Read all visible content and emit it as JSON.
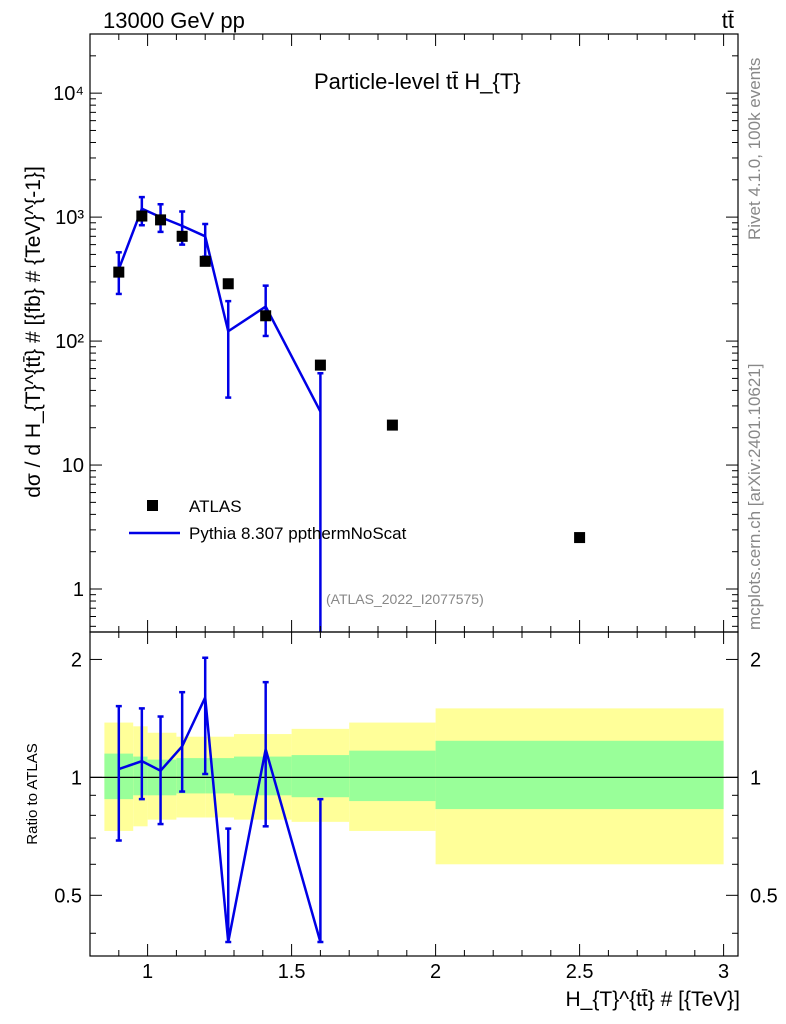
{
  "header": {
    "energy": "13000 GeV pp",
    "process": "tt̄"
  },
  "side_text": {
    "rivet": "Rivet 4.1.0,  100k events",
    "site": "mcplots.cern.ch [arXiv:2401.10621]"
  },
  "colors": {
    "data": "#000000",
    "mc": "#0000e6",
    "band_inner": "#99ff99",
    "band_outer": "#ffff99"
  },
  "chart_data": [
    {
      "type": "scatter",
      "title": "Particle-level tt̄  H_{T}",
      "ylabel": "dσ / d H_{T}^{tt̄} # [{fb} # {TeV}^{-1}]",
      "xlabel": "",
      "xlim": [
        0.8,
        3.05
      ],
      "ylim": [
        0.45,
        30000
      ],
      "yscale": "log",
      "y_ticks": [
        {
          "value": 1,
          "label": "1"
        },
        {
          "value": 10,
          "label": "10"
        },
        {
          "value": 100,
          "label": "10²"
        },
        {
          "value": 1000,
          "label": "10³"
        },
        {
          "value": 10000,
          "label": "10⁴"
        }
      ],
      "legend": {
        "position": "bottom-left",
        "entries": [
          "ATLAS",
          "Pythia 8.307 ppthermNoScat"
        ]
      },
      "annotation": "(ATLAS_2022_I2077575)",
      "series": [
        {
          "name": "ATLAS",
          "marker": "square",
          "x": [
            0.9,
            0.98,
            1.045,
            1.12,
            1.2,
            1.28,
            1.41,
            1.6,
            1.85,
            2.5
          ],
          "values": [
            360,
            1020,
            950,
            700,
            440,
            290,
            160,
            64,
            21,
            2.6
          ]
        },
        {
          "name": "Pythia 8.307 ppthermNoScat",
          "marker": "line",
          "x": [
            0.9,
            0.98,
            1.045,
            1.12,
            1.2,
            1.28,
            1.41,
            1.6
          ],
          "values": [
            380,
            1170,
            1000,
            850,
            700,
            120,
            190,
            27
          ],
          "err_low": [
            240,
            860,
            760,
            600,
            480,
            35,
            110,
            0.3
          ],
          "err_high": [
            520,
            1450,
            1270,
            1110,
            880,
            210,
            280,
            55
          ]
        }
      ]
    },
    {
      "type": "line",
      "title": "",
      "ylabel": "Ratio to ATLAS",
      "xlabel": "H_{T}^{tt̄} # [{TeV}]",
      "xlim": [
        0.8,
        3.05
      ],
      "ylim": [
        0.35,
        2.35
      ],
      "yscale": "log",
      "y_ticks": [
        {
          "value": 0.5,
          "label": "0.5"
        },
        {
          "value": 1,
          "label": "1"
        },
        {
          "value": 2,
          "label": "2"
        }
      ],
      "x_ticks": [
        {
          "value": 1,
          "label": "1"
        },
        {
          "value": 1.5,
          "label": "1.5"
        },
        {
          "value": 2,
          "label": "2"
        },
        {
          "value": 2.5,
          "label": "2.5"
        },
        {
          "value": 3,
          "label": "3"
        }
      ],
      "bands": {
        "edges": [
          0.85,
          0.95,
          1.0,
          1.1,
          1.2,
          1.3,
          1.5,
          1.7,
          2.0,
          3.0
        ],
        "inner_low": [
          0.88,
          0.9,
          0.9,
          0.91,
          0.91,
          0.9,
          0.89,
          0.87,
          0.83
        ],
        "inner_high": [
          1.15,
          1.13,
          1.11,
          1.12,
          1.12,
          1.13,
          1.14,
          1.17,
          1.24
        ],
        "outer_low": [
          0.73,
          0.75,
          0.78,
          0.79,
          0.79,
          0.78,
          0.77,
          0.73,
          0.6
        ],
        "outer_high": [
          1.38,
          1.35,
          1.3,
          1.27,
          1.27,
          1.29,
          1.33,
          1.38,
          1.5
        ]
      },
      "series": [
        {
          "name": "Pythia 8.307 ppthermNoScat",
          "x": [
            0.9,
            0.98,
            1.045,
            1.12,
            1.2,
            1.28,
            1.41,
            1.6
          ],
          "values": [
            1.05,
            1.1,
            1.04,
            1.2,
            1.6,
            0.38,
            1.18,
            0.38
          ],
          "err_low": [
            0.69,
            0.88,
            0.76,
            0.92,
            1.02,
            0.38,
            0.75,
            0.38
          ],
          "err_high": [
            1.52,
            1.5,
            1.43,
            1.65,
            2.02,
            0.74,
            1.75,
            0.88
          ]
        }
      ]
    }
  ]
}
